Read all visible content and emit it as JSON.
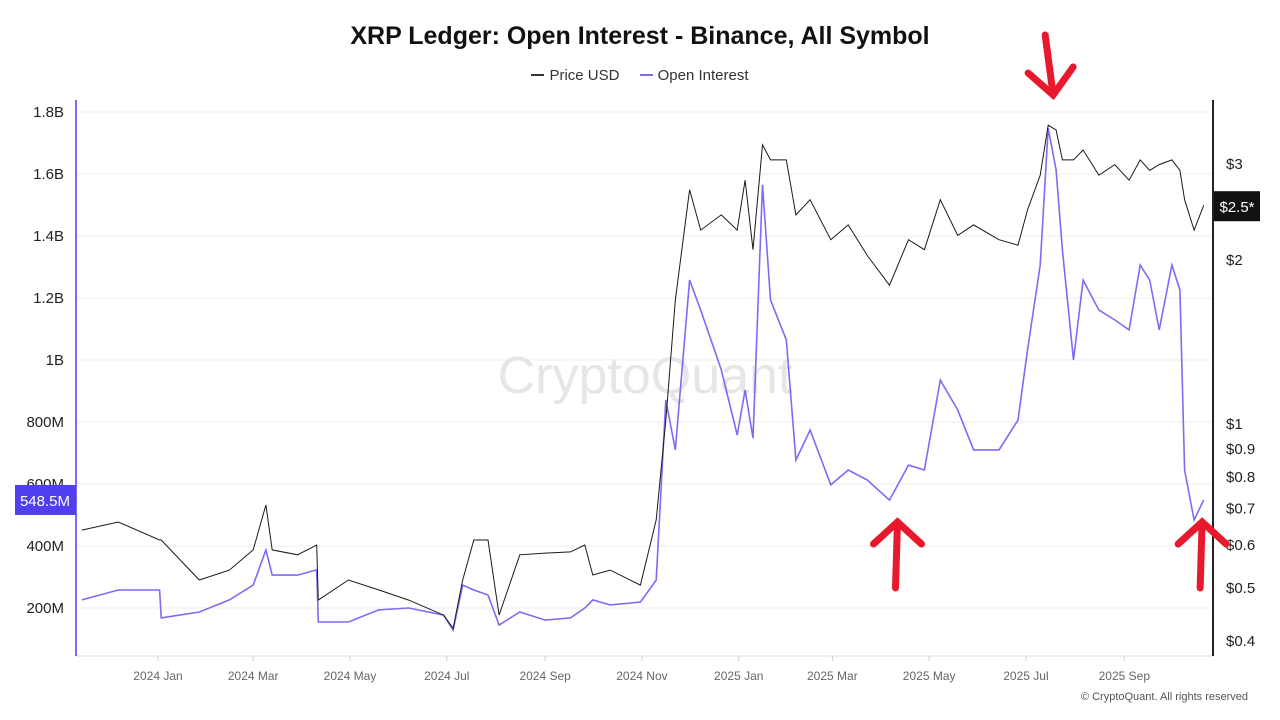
{
  "chart_data": {
    "type": "line",
    "title": "XRP Ledger: Open Interest - Binance, All Symbol",
    "legend": {
      "position": "top-center",
      "entries": [
        "Price USD",
        "Open Interest"
      ]
    },
    "colors": {
      "price": "#1a1a1a",
      "open_interest": "#7b6cf6",
      "oi_label_bg": "#4f3ff0",
      "price_label_bg": "#111111",
      "arrow": "#e8192c",
      "grid": "#eeeeee"
    },
    "left_axis": {
      "label": "Open Interest",
      "ylim": [
        0,
        1800000000
      ],
      "ticks": [
        "200M",
        "400M",
        "600M",
        "800M",
        "1B",
        "1.2B",
        "1.4B",
        "1.6B",
        "1.8B"
      ],
      "tick_values": [
        200,
        400,
        600,
        800,
        1000,
        1200,
        1400,
        1600,
        1800
      ],
      "current_label": "548.5M",
      "current_value": 548.5
    },
    "right_axis": {
      "label": "Price USD",
      "scale": "log",
      "ticks": [
        "$0.4",
        "$0.5",
        "$0.6",
        "$0.7",
        "$0.8",
        "$0.9",
        "$1",
        "$2",
        "$3"
      ],
      "tick_values": [
        0.4,
        0.5,
        0.6,
        0.7,
        0.8,
        0.9,
        1,
        2,
        3
      ],
      "current_label": "$2.5*",
      "current_value": 2.5
    },
    "x_ticks": [
      "2024 Jan",
      "2024 Mar",
      "2024 May",
      "2024 Jul",
      "2024 Sep",
      "2024 Nov",
      "2025 Jan",
      "2025 Mar",
      "2025 May",
      "2025 Jul",
      "2025 Sep"
    ],
    "x_tick_dates": [
      "2024-01-01",
      "2024-03-01",
      "2024-05-01",
      "2024-07-01",
      "2024-09-01",
      "2024-11-01",
      "2025-01-01",
      "2025-03-01",
      "2025-05-01",
      "2025-07-01",
      "2025-09-01"
    ],
    "series": [
      {
        "name": "Price USD",
        "unit": "USD",
        "points": [
          [
            "2023-11-14",
            0.636
          ],
          [
            "2023-12-07",
            0.658
          ],
          [
            "2024-01-02",
            0.61
          ],
          [
            "2024-01-03",
            0.61
          ],
          [
            "2024-01-27",
            0.515
          ],
          [
            "2024-02-15",
            0.537
          ],
          [
            "2024-03-01",
            0.585
          ],
          [
            "2024-03-09",
            0.707
          ],
          [
            "2024-03-13",
            0.585
          ],
          [
            "2024-03-29",
            0.573
          ],
          [
            "2024-04-10",
            0.597
          ],
          [
            "2024-04-11",
            0.473
          ],
          [
            "2024-04-30",
            0.515
          ],
          [
            "2024-05-19",
            0.494
          ],
          [
            "2024-06-07",
            0.473
          ],
          [
            "2024-06-29",
            0.444
          ],
          [
            "2024-07-05",
            0.42
          ],
          [
            "2024-07-11",
            0.515
          ],
          [
            "2024-07-18",
            0.61
          ],
          [
            "2024-07-27",
            0.61
          ],
          [
            "2024-08-03",
            0.444
          ],
          [
            "2024-08-16",
            0.573
          ],
          [
            "2024-09-01",
            0.577
          ],
          [
            "2024-09-17",
            0.58
          ],
          [
            "2024-09-26",
            0.597
          ],
          [
            "2024-10-01",
            0.526
          ],
          [
            "2024-10-12",
            0.537
          ],
          [
            "2024-10-31",
            0.504
          ],
          [
            "2024-11-10",
            0.664
          ],
          [
            "2024-11-16",
            1.01
          ],
          [
            "2024-11-22",
            1.68
          ],
          [
            "2024-12-01",
            2.68
          ],
          [
            "2024-12-08",
            2.26
          ],
          [
            "2024-12-21",
            2.41
          ],
          [
            "2024-12-31",
            2.26
          ],
          [
            "2025-01-05",
            2.79
          ],
          [
            "2025-01-10",
            2.08
          ],
          [
            "2025-01-16",
            3.24
          ],
          [
            "2025-01-21",
            3.04
          ],
          [
            "2025-01-31",
            3.04
          ],
          [
            "2025-02-06",
            2.41
          ],
          [
            "2025-02-15",
            2.57
          ],
          [
            "2025-02-28",
            2.17
          ],
          [
            "2025-03-11",
            2.31
          ],
          [
            "2025-03-23",
            2.03
          ],
          [
            "2025-04-06",
            1.79
          ],
          [
            "2025-04-18",
            2.17
          ],
          [
            "2025-04-28",
            2.08
          ],
          [
            "2025-05-08",
            2.57
          ],
          [
            "2025-05-19",
            2.21
          ],
          [
            "2025-05-29",
            2.31
          ],
          [
            "2025-06-14",
            2.17
          ],
          [
            "2025-06-26",
            2.12
          ],
          [
            "2025-07-02",
            2.46
          ],
          [
            "2025-07-10",
            2.85
          ],
          [
            "2025-07-15",
            3.52
          ],
          [
            "2025-07-20",
            3.45
          ],
          [
            "2025-07-24",
            3.04
          ],
          [
            "2025-07-31",
            3.04
          ],
          [
            "2025-08-06",
            3.17
          ],
          [
            "2025-08-16",
            2.85
          ],
          [
            "2025-08-26",
            2.98
          ],
          [
            "2025-09-04",
            2.79
          ],
          [
            "2025-09-11",
            3.04
          ],
          [
            "2025-09-17",
            2.91
          ],
          [
            "2025-09-23",
            2.98
          ],
          [
            "2025-10-01",
            3.04
          ],
          [
            "2025-10-06",
            2.91
          ],
          [
            "2025-10-09",
            2.57
          ],
          [
            "2025-10-15",
            2.26
          ],
          [
            "2025-10-21",
            2.51
          ]
        ]
      },
      {
        "name": "Open Interest",
        "unit": "USD millions",
        "points": [
          [
            "2023-11-14",
            226
          ],
          [
            "2023-12-07",
            258
          ],
          [
            "2024-01-02",
            258
          ],
          [
            "2024-01-03",
            168
          ],
          [
            "2024-01-27",
            187
          ],
          [
            "2024-02-15",
            226
          ],
          [
            "2024-03-01",
            274
          ],
          [
            "2024-03-09",
            387
          ],
          [
            "2024-03-13",
            306
          ],
          [
            "2024-03-29",
            306
          ],
          [
            "2024-04-10",
            323
          ],
          [
            "2024-04-11",
            155
          ],
          [
            "2024-04-30",
            155
          ],
          [
            "2024-05-19",
            194
          ],
          [
            "2024-06-07",
            200
          ],
          [
            "2024-06-29",
            177
          ],
          [
            "2024-07-05",
            129
          ],
          [
            "2024-07-11",
            274
          ],
          [
            "2024-07-18",
            258
          ],
          [
            "2024-07-27",
            242
          ],
          [
            "2024-08-03",
            145
          ],
          [
            "2024-08-16",
            187
          ],
          [
            "2024-09-01",
            161
          ],
          [
            "2024-09-17",
            168
          ],
          [
            "2024-09-26",
            200
          ],
          [
            "2024-10-01",
            226
          ],
          [
            "2024-10-12",
            210
          ],
          [
            "2024-10-31",
            219
          ],
          [
            "2024-11-10",
            290
          ],
          [
            "2024-11-16",
            871
          ],
          [
            "2024-11-22",
            710
          ],
          [
            "2024-12-01",
            1258
          ],
          [
            "2024-12-08",
            1161
          ],
          [
            "2024-12-21",
            968
          ],
          [
            "2024-12-31",
            758
          ],
          [
            "2025-01-05",
            903
          ],
          [
            "2025-01-10",
            748
          ],
          [
            "2025-01-16",
            1565
          ],
          [
            "2025-01-21",
            1194
          ],
          [
            "2025-01-31",
            1065
          ],
          [
            "2025-02-06",
            677
          ],
          [
            "2025-02-15",
            774
          ],
          [
            "2025-02-28",
            597
          ],
          [
            "2025-03-11",
            645
          ],
          [
            "2025-03-23",
            613
          ],
          [
            "2025-04-06",
            548
          ],
          [
            "2025-04-18",
            661
          ],
          [
            "2025-04-28",
            645
          ],
          [
            "2025-05-08",
            935
          ],
          [
            "2025-05-19",
            839
          ],
          [
            "2025-05-29",
            710
          ],
          [
            "2025-06-14",
            710
          ],
          [
            "2025-06-26",
            806
          ],
          [
            "2025-07-02",
            1032
          ],
          [
            "2025-07-10",
            1306
          ],
          [
            "2025-07-15",
            1748
          ],
          [
            "2025-07-20",
            1613
          ],
          [
            "2025-07-24",
            1355
          ],
          [
            "2025-07-31",
            1000
          ],
          [
            "2025-08-06",
            1258
          ],
          [
            "2025-08-16",
            1161
          ],
          [
            "2025-08-26",
            1129
          ],
          [
            "2025-09-04",
            1097
          ],
          [
            "2025-09-11",
            1306
          ],
          [
            "2025-09-17",
            1258
          ],
          [
            "2025-09-23",
            1097
          ],
          [
            "2025-10-01",
            1306
          ],
          [
            "2025-10-06",
            1226
          ],
          [
            "2025-10-09",
            645
          ],
          [
            "2025-10-15",
            484
          ],
          [
            "2025-10-21",
            548.5
          ]
        ]
      }
    ],
    "annotations": [
      {
        "type": "arrow-down",
        "date": "2025-07-15",
        "note": "top"
      },
      {
        "type": "arrow-up",
        "date": "2025-04-06",
        "note": "bottom"
      },
      {
        "type": "arrow-up",
        "date": "2025-10-15",
        "note": "bottom"
      }
    ],
    "grid": true
  },
  "watermark": "CryptoQuant",
  "copyright": "© CryptoQuant. All rights reserved"
}
